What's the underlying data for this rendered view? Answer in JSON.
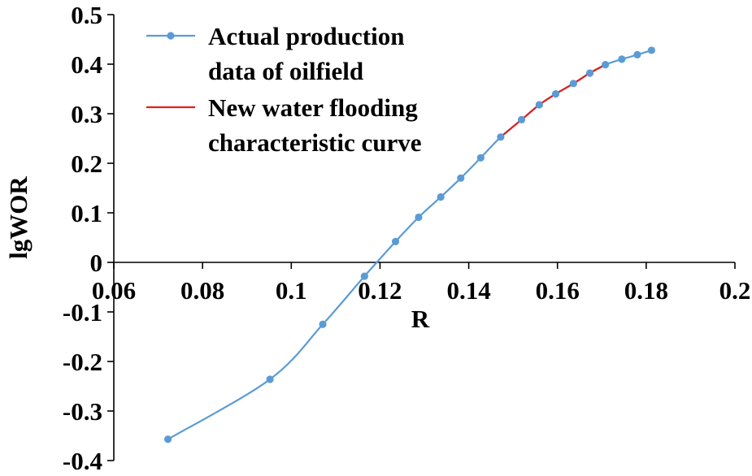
{
  "chart_data": {
    "type": "line",
    "title": "",
    "xlabel": "R",
    "ylabel": "lgWOR",
    "xlim": [
      0.06,
      0.2
    ],
    "ylim": [
      -0.4,
      0.5
    ],
    "x_ticks": [
      "0.06",
      "0.08",
      "0.1",
      "0.12",
      "0.14",
      "0.16",
      "0.18",
      "0.2"
    ],
    "y_ticks": [
      "0.5",
      "0.4",
      "0.3",
      "0.2",
      "0.1",
      "0",
      "-0.1",
      "-0.2",
      "-0.3",
      "-0.4"
    ],
    "grid": false,
    "legend_position": "top-left",
    "series": [
      {
        "name": "Actual production data of oilfield",
        "legend_lines": [
          "Actual production",
          "data of oilfield"
        ],
        "color": "#5b9bd5",
        "marker": "circle",
        "x": [
          0.0722,
          0.0952,
          0.1071,
          0.1165,
          0.1235,
          0.1287,
          0.1337,
          0.1382,
          0.1427,
          0.1472,
          0.1519,
          0.1559,
          0.1596,
          0.1636,
          0.1673,
          0.1708,
          0.1745,
          0.178,
          0.1812
        ],
        "y": [
          -0.357,
          -0.236,
          -0.125,
          -0.028,
          0.042,
          0.091,
          0.132,
          0.17,
          0.211,
          0.253,
          0.288,
          0.318,
          0.34,
          0.361,
          0.382,
          0.399,
          0.41,
          0.419,
          0.428
        ]
      },
      {
        "name": "New water flooding characteristic curve",
        "legend_lines": [
          "New water flooding",
          "characteristic curve"
        ],
        "color": "#e0201b",
        "marker": "none",
        "x": [
          0.1472,
          0.1519,
          0.1559,
          0.1596,
          0.1636,
          0.1673,
          0.1708
        ],
        "y": [
          0.253,
          0.288,
          0.318,
          0.34,
          0.361,
          0.382,
          0.399
        ]
      }
    ]
  }
}
